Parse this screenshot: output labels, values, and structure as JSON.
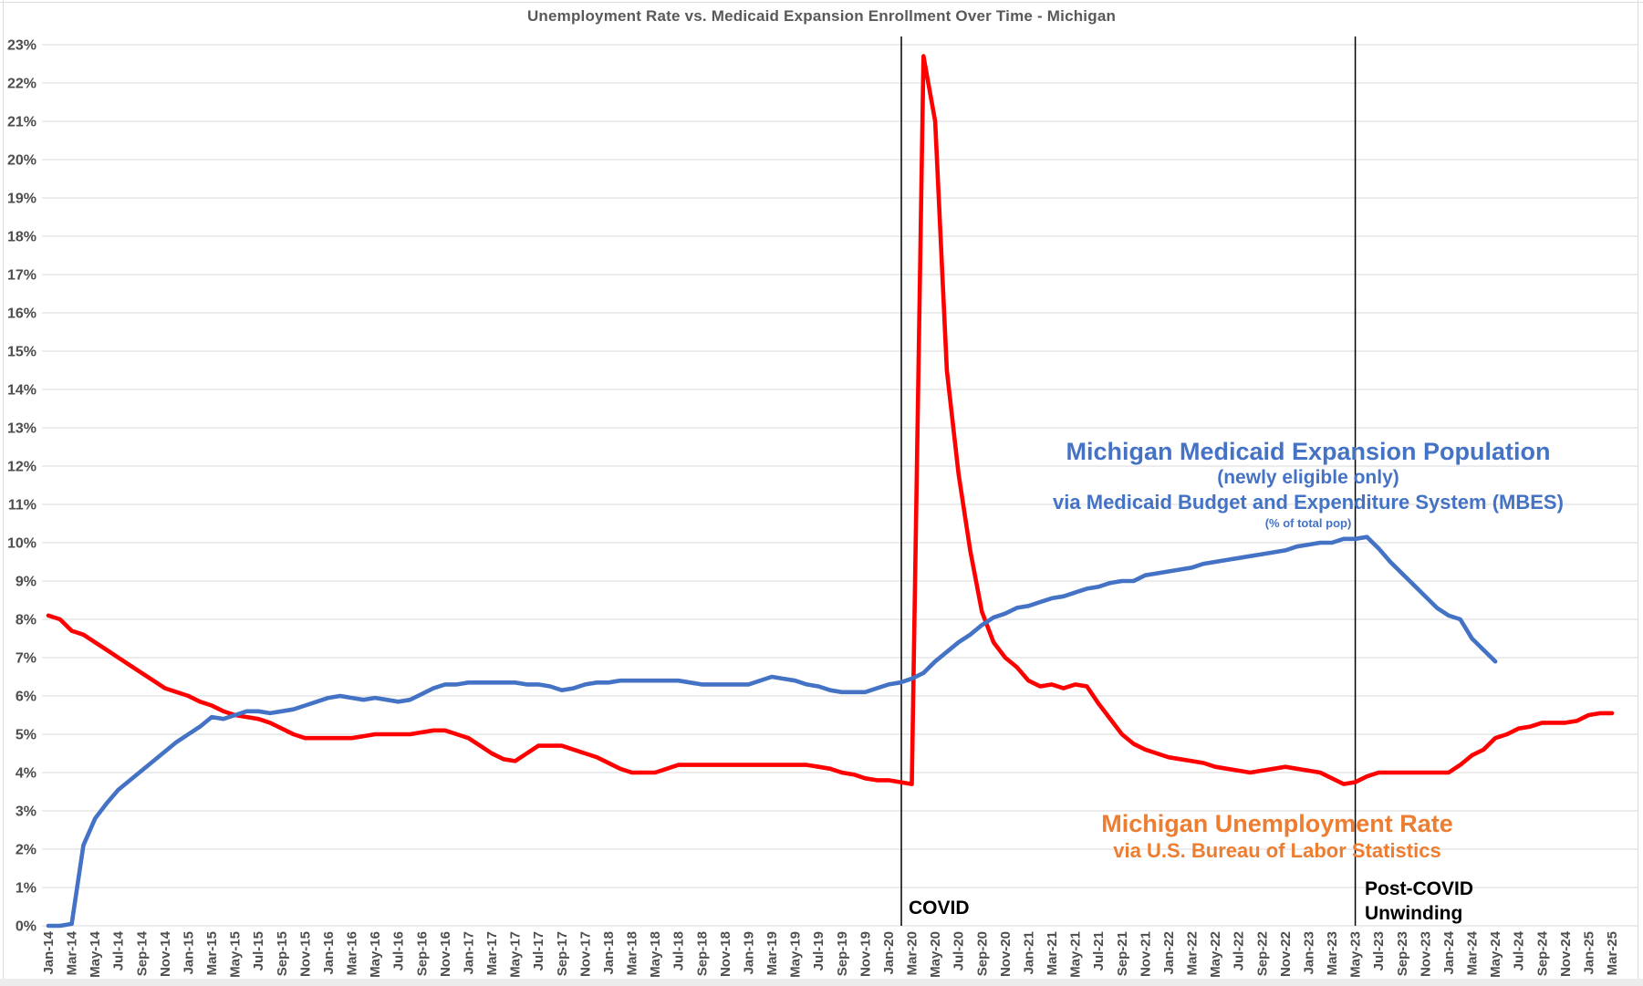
{
  "title": "Unemployment Rate vs. Medicaid Expansion Enrollment Over Time - Michigan",
  "colors": {
    "unemployment_line": "#FF0000",
    "medicaid_line": "#4472C4",
    "medicaid_text": "#4472C4",
    "unemployment_text": "#ED7D31",
    "title_text": "#595959",
    "axis_text": "#4d4d4d",
    "gridline": "#D9D9D9",
    "vline": "#000000"
  },
  "annotations": {
    "medicaid": {
      "line1": "Michigan Medicaid Expansion Population",
      "line2": "(newly eligible only)",
      "line3": "via Medicaid Budget and Expenditure System (MBES)",
      "line4": "(% of total pop)"
    },
    "unemployment": {
      "line1": "Michigan Unemployment Rate",
      "line2": "via U.S. Bureau of Labor Statistics"
    },
    "covid": "COVID",
    "post_covid_line1": "Post-COVID",
    "post_covid_line2": "Unwinding"
  },
  "chart_data": {
    "type": "line",
    "title": "Unemployment Rate vs. Medicaid Expansion Enrollment Over Time - Michigan",
    "grid": "horizontal",
    "legend_position": "none (in-plot text annotations)",
    "ylim": [
      0,
      23
    ],
    "y_tick_labels": [
      "0%",
      "1%",
      "2%",
      "3%",
      "4%",
      "5%",
      "6%",
      "7%",
      "8%",
      "9%",
      "10%",
      "11%",
      "12%",
      "13%",
      "14%",
      "15%",
      "16%",
      "17%",
      "18%",
      "19%",
      "20%",
      "21%",
      "22%",
      "23%"
    ],
    "x_unit": "month",
    "x_start": "Jan-14",
    "x_end": "Mar-25",
    "x_monthly_count": 135,
    "x_tick_every_months": 2,
    "x_tick_labels": [
      "Jan-14",
      "Mar-14",
      "May-14",
      "Jul-14",
      "Sep-14",
      "Nov-14",
      "Jan-15",
      "Mar-15",
      "May-15",
      "Jul-15",
      "Sep-15",
      "Nov-15",
      "Jan-16",
      "Mar-16",
      "May-16",
      "Jul-16",
      "Sep-16",
      "Nov-16",
      "Jan-17",
      "Mar-17",
      "May-17",
      "Jul-17",
      "Sep-17",
      "Nov-17",
      "Jan-18",
      "Mar-18",
      "May-18",
      "Jul-18",
      "Sep-18",
      "Nov-18",
      "Jan-19",
      "Mar-19",
      "May-19",
      "Jul-19",
      "Sep-19",
      "Nov-19",
      "Jan-20",
      "Mar-20",
      "May-20",
      "Jul-20",
      "Sep-20",
      "Nov-20",
      "Jan-21",
      "Mar-21",
      "May-21",
      "Jul-21",
      "Sep-21",
      "Nov-21",
      "Jan-22",
      "Mar-22",
      "May-22",
      "Jul-22",
      "Sep-22",
      "Nov-22",
      "Jan-23",
      "Mar-23",
      "May-23",
      "Jul-23",
      "Sep-23",
      "Nov-23",
      "Jan-24",
      "Mar-24",
      "May-24",
      "Jul-24",
      "Sep-24",
      "Nov-24",
      "Jan-25",
      "Mar-25"
    ],
    "series": [
      {
        "key": "unemployment",
        "name": "Michigan Unemployment Rate (via U.S. Bureau of Labor Statistics)",
        "color": "#FF0000",
        "start_month": "Jan-14",
        "values": [
          8.1,
          8.0,
          7.7,
          7.6,
          7.4,
          7.2,
          7.0,
          6.8,
          6.6,
          6.4,
          6.2,
          6.1,
          6.0,
          5.85,
          5.75,
          5.6,
          5.5,
          5.45,
          5.4,
          5.3,
          5.15,
          5.0,
          4.9,
          4.9,
          4.9,
          4.9,
          4.9,
          4.95,
          5.0,
          5.0,
          5.0,
          5.0,
          5.05,
          5.1,
          5.1,
          5.0,
          4.9,
          4.7,
          4.5,
          4.35,
          4.3,
          4.5,
          4.7,
          4.7,
          4.7,
          4.6,
          4.5,
          4.4,
          4.25,
          4.1,
          4.0,
          4.0,
          4.0,
          4.1,
          4.2,
          4.2,
          4.2,
          4.2,
          4.2,
          4.2,
          4.2,
          4.2,
          4.2,
          4.2,
          4.2,
          4.2,
          4.15,
          4.1,
          4.0,
          3.95,
          3.85,
          3.8,
          3.8,
          3.75,
          3.7,
          22.7,
          21.0,
          14.5,
          11.8,
          9.8,
          8.2,
          7.4,
          7.0,
          6.75,
          6.4,
          6.25,
          6.3,
          6.2,
          6.3,
          6.25,
          5.8,
          5.4,
          5.0,
          4.75,
          4.6,
          4.5,
          4.4,
          4.35,
          4.3,
          4.25,
          4.15,
          4.1,
          4.05,
          4.0,
          4.05,
          4.1,
          4.15,
          4.1,
          4.05,
          4.0,
          3.85,
          3.7,
          3.75,
          3.9,
          4.0,
          4.0,
          4.0,
          4.0,
          4.0,
          4.0,
          4.0,
          4.2,
          4.45,
          4.6,
          4.9,
          5.0,
          5.15,
          5.2,
          5.3,
          5.3,
          5.3,
          5.35,
          5.5,
          5.55,
          5.55
        ]
      },
      {
        "key": "medicaid",
        "name": "Michigan Medicaid Expansion Population, newly eligible only (% of total pop, via MBES)",
        "color": "#4472C4",
        "start_month": "Jan-14",
        "values": [
          0,
          0,
          0.05,
          2.1,
          2.8,
          3.2,
          3.55,
          3.8,
          4.05,
          4.3,
          4.55,
          4.8,
          5.0,
          5.2,
          5.45,
          5.4,
          5.5,
          5.6,
          5.6,
          5.55,
          5.6,
          5.65,
          5.75,
          5.85,
          5.95,
          6.0,
          5.95,
          5.9,
          5.95,
          5.9,
          5.85,
          5.9,
          6.05,
          6.2,
          6.3,
          6.3,
          6.35,
          6.35,
          6.35,
          6.35,
          6.35,
          6.3,
          6.3,
          6.25,
          6.15,
          6.2,
          6.3,
          6.35,
          6.35,
          6.4,
          6.4,
          6.4,
          6.4,
          6.4,
          6.4,
          6.35,
          6.3,
          6.3,
          6.3,
          6.3,
          6.3,
          6.4,
          6.5,
          6.45,
          6.4,
          6.3,
          6.25,
          6.15,
          6.1,
          6.1,
          6.1,
          6.2,
          6.3,
          6.35,
          6.45,
          6.6,
          6.9,
          7.15,
          7.4,
          7.6,
          7.85,
          8.05,
          8.15,
          8.3,
          8.35,
          8.45,
          8.55,
          8.6,
          8.7,
          8.8,
          8.85,
          8.95,
          9.0,
          9.0,
          9.15,
          9.2,
          9.25,
          9.3,
          9.35,
          9.45,
          9.5,
          9.55,
          9.6,
          9.65,
          9.7,
          9.75,
          9.8,
          9.9,
          9.95,
          10.0,
          10.0,
          10.1,
          10.1,
          10.15,
          9.85,
          9.5,
          9.2,
          8.9,
          8.6,
          8.3,
          8.1,
          8.0,
          7.5,
          7.2,
          6.9
        ]
      }
    ],
    "vlines": [
      {
        "name": "covid",
        "month_index": 73.1,
        "at": "Feb/Mar-20"
      },
      {
        "name": "post_covid_unwinding",
        "month_index": 112.0,
        "at": "May-23"
      }
    ]
  }
}
